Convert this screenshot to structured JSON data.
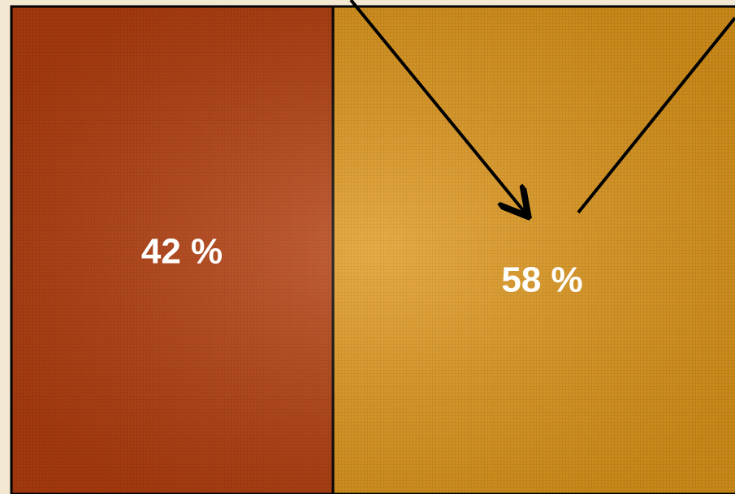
{
  "chart_data": {
    "type": "split-bar",
    "values": [
      42,
      58
    ],
    "value_labels": [
      "42 %",
      "58 %"
    ],
    "colors": [
      "#b8400f",
      "#e39a1c"
    ],
    "xlim": [
      0,
      100
    ]
  }
}
